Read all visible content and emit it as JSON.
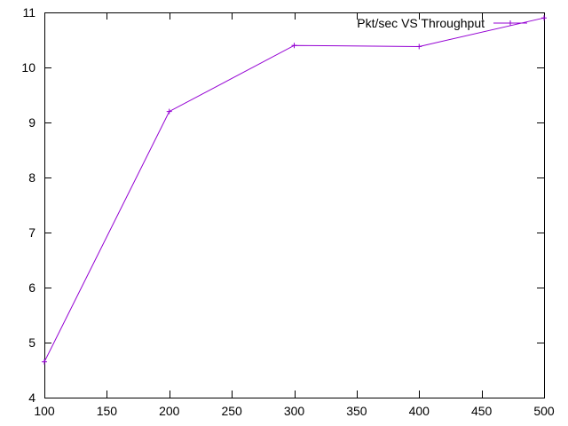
{
  "chart_data": {
    "type": "line",
    "title": "",
    "xlabel": "",
    "ylabel": "",
    "xlim": [
      100,
      500
    ],
    "ylim": [
      4,
      11
    ],
    "x_ticks": [
      100,
      150,
      200,
      250,
      300,
      350,
      400,
      450,
      500
    ],
    "y_ticks": [
      4,
      5,
      6,
      7,
      8,
      9,
      10,
      11
    ],
    "grid": false,
    "legend_position": "top-right",
    "series": [
      {
        "name": "Pkt/sec VS Throughput",
        "color": "#9400d3",
        "marker": "plus",
        "x": [
          100,
          200,
          300,
          400,
          500
        ],
        "y": [
          4.65,
          9.2,
          10.4,
          10.38,
          10.9
        ]
      }
    ]
  }
}
